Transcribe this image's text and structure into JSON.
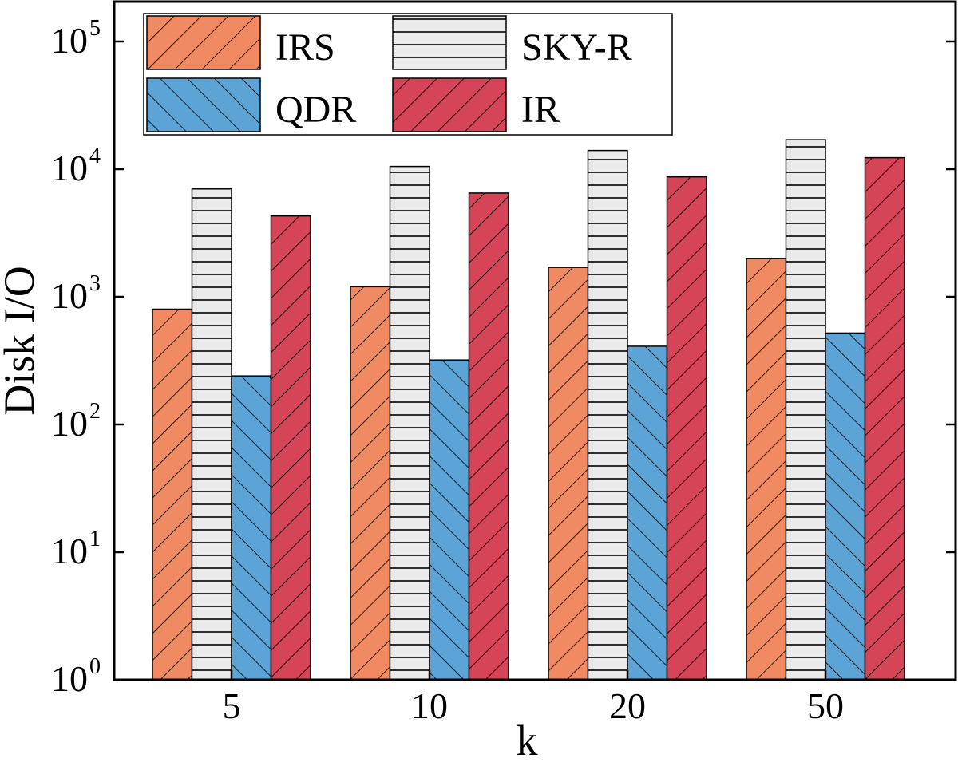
{
  "chart_data": {
    "type": "bar",
    "title": "",
    "xlabel": "k",
    "ylabel": "Disk I/O",
    "yscale": "log",
    "ylim": [
      1,
      200000
    ],
    "yticks": [
      {
        "base": "10",
        "exp": "0"
      },
      {
        "base": "10",
        "exp": "1"
      },
      {
        "base": "10",
        "exp": "2"
      },
      {
        "base": "10",
        "exp": "3"
      },
      {
        "base": "10",
        "exp": "4"
      },
      {
        "base": "10",
        "exp": "5"
      }
    ],
    "categories": [
      "5",
      "10",
      "20",
      "50"
    ],
    "series": [
      {
        "name": "IRS",
        "values": [
          800,
          1200,
          1700,
          2000
        ],
        "color": "#EF8A62",
        "pattern": "diag-right"
      },
      {
        "name": "SKY-R",
        "values": [
          7000,
          10500,
          14000,
          17000
        ],
        "color": "#EBEBEB",
        "pattern": "horizontal"
      },
      {
        "name": "QDR",
        "values": [
          240,
          320,
          410,
          520
        ],
        "color": "#5DA4D6",
        "pattern": "diag-left"
      },
      {
        "name": "IR",
        "values": [
          4300,
          6500,
          8700,
          12300
        ],
        "color": "#D64457",
        "pattern": "diag-right"
      }
    ],
    "legend_position": "top-left"
  }
}
